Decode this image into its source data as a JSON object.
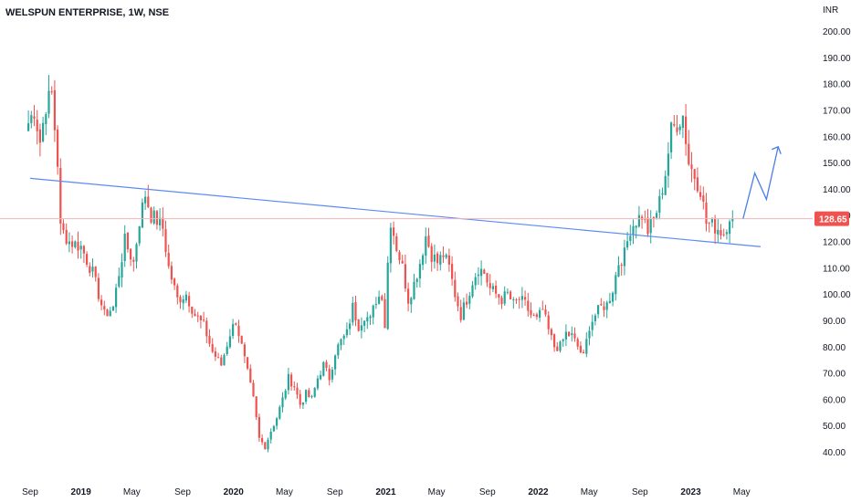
{
  "header": {
    "title": "WELSPUN ENTERPRISE, 1W, NSE"
  },
  "chart_data": {
    "type": "candlestick",
    "currency_label": "INR",
    "y_ticks": [
      "200.00",
      "190.00",
      "180.00",
      "170.00",
      "160.00",
      "150.00",
      "140.00",
      "130.00",
      "120.00",
      "110.00",
      "100.00",
      "90.00",
      "80.00",
      "70.00",
      "60.00",
      "50.00",
      "40.00"
    ],
    "ylim": [
      35,
      205
    ],
    "x_ticks": [
      {
        "label": "Sep",
        "t": 0
      },
      {
        "label": "2019",
        "t": 17.4
      },
      {
        "label": "May",
        "t": 34.8
      },
      {
        "label": "Sep",
        "t": 52.2
      },
      {
        "label": "2020",
        "t": 69.6
      },
      {
        "label": "May",
        "t": 87.0
      },
      {
        "label": "Sep",
        "t": 104.3
      },
      {
        "label": "2021",
        "t": 121.7
      },
      {
        "label": "May",
        "t": 139.1
      },
      {
        "label": "Sep",
        "t": 156.5
      },
      {
        "label": "2022",
        "t": 173.9
      },
      {
        "label": "May",
        "t": 191.3
      },
      {
        "label": "Sep",
        "t": 208.7
      },
      {
        "label": "2023",
        "t": 226.1
      },
      {
        "label": "May",
        "t": 243.5
      }
    ],
    "last_price": "128.65",
    "last_price_value": 128.65,
    "anchors": [
      [
        0,
        165
      ],
      [
        2,
        170
      ],
      [
        4,
        158
      ],
      [
        6,
        172
      ],
      [
        8,
        176
      ],
      [
        10,
        150
      ],
      [
        11,
        125
      ],
      [
        14,
        120
      ],
      [
        18,
        118
      ],
      [
        22,
        108
      ],
      [
        26,
        92
      ],
      [
        29,
        95
      ],
      [
        31,
        108
      ],
      [
        33,
        120
      ],
      [
        36,
        112
      ],
      [
        38,
        128
      ],
      [
        40,
        138
      ],
      [
        42,
        130
      ],
      [
        44,
        128
      ],
      [
        46,
        125
      ],
      [
        48,
        110
      ],
      [
        51,
        98
      ],
      [
        54,
        100
      ],
      [
        57,
        92
      ],
      [
        60,
        88
      ],
      [
        63,
        78
      ],
      [
        66,
        73
      ],
      [
        69,
        85
      ],
      [
        71,
        90
      ],
      [
        73,
        80
      ],
      [
        75,
        70
      ],
      [
        77,
        60
      ],
      [
        79,
        45
      ],
      [
        81,
        42
      ],
      [
        83,
        48
      ],
      [
        85,
        53
      ],
      [
        87,
        60
      ],
      [
        89,
        68
      ],
      [
        91,
        65
      ],
      [
        93,
        58
      ],
      [
        95,
        62
      ],
      [
        97,
        60
      ],
      [
        99,
        68
      ],
      [
        101,
        73
      ],
      [
        103,
        68
      ],
      [
        105,
        78
      ],
      [
        107,
        82
      ],
      [
        109,
        85
      ],
      [
        111,
        95
      ],
      [
        113,
        88
      ],
      [
        115,
        92
      ],
      [
        117,
        90
      ],
      [
        119,
        98
      ],
      [
        121,
        100
      ],
      [
        122,
        88
      ],
      [
        123,
        112
      ],
      [
        124,
        128
      ],
      [
        126,
        118
      ],
      [
        128,
        110
      ],
      [
        130,
        98
      ],
      [
        132,
        104
      ],
      [
        134,
        112
      ],
      [
        136,
        122
      ],
      [
        138,
        115
      ],
      [
        140,
        112
      ],
      [
        142,
        115
      ],
      [
        144,
        110
      ],
      [
        146,
        100
      ],
      [
        148,
        92
      ],
      [
        150,
        98
      ],
      [
        152,
        105
      ],
      [
        154,
        110
      ],
      [
        156,
        108
      ],
      [
        158,
        102
      ],
      [
        160,
        100
      ],
      [
        162,
        98
      ],
      [
        164,
        100
      ],
      [
        166,
        96
      ],
      [
        168,
        98
      ],
      [
        170,
        96
      ],
      [
        172,
        92
      ],
      [
        174,
        90
      ],
      [
        176,
        94
      ],
      [
        178,
        86
      ],
      [
        180,
        80
      ],
      [
        182,
        80
      ],
      [
        184,
        85
      ],
      [
        186,
        84
      ],
      [
        188,
        80
      ],
      [
        190,
        76
      ],
      [
        192,
        88
      ],
      [
        194,
        92
      ],
      [
        196,
        95
      ],
      [
        198,
        96
      ],
      [
        200,
        102
      ],
      [
        202,
        112
      ],
      [
        204,
        115
      ],
      [
        206,
        125
      ],
      [
        208,
        128
      ],
      [
        210,
        130
      ],
      [
        212,
        124
      ],
      [
        214,
        128
      ],
      [
        216,
        135
      ],
      [
        218,
        146
      ],
      [
        220,
        162
      ],
      [
        222,
        165
      ],
      [
        224,
        168
      ],
      [
        226,
        150
      ],
      [
        228,
        145
      ],
      [
        230,
        140
      ],
      [
        232,
        127
      ],
      [
        234,
        126
      ],
      [
        236,
        125
      ],
      [
        238,
        123
      ],
      [
        240,
        130
      ],
      [
        241,
        128.65
      ]
    ],
    "trendline": {
      "start": {
        "t": 0,
        "y": 144
      },
      "end": {
        "t": 250,
        "y": 118
      }
    },
    "horizontal_line": {
      "y": 128.65
    },
    "projection_path": [
      {
        "t": 244,
        "y": 128.65
      },
      {
        "t": 248,
        "y": 146
      },
      {
        "t": 252,
        "y": 136
      },
      {
        "t": 256,
        "y": 156
      }
    ],
    "colors": {
      "up": "#26a69a",
      "down": "#ef5350",
      "trendline": "#5b8af5",
      "price_line": "#f7b3b6",
      "projection": "#4a7ee8",
      "price_tag": "#ef5350",
      "axis_text": "#131722"
    }
  }
}
